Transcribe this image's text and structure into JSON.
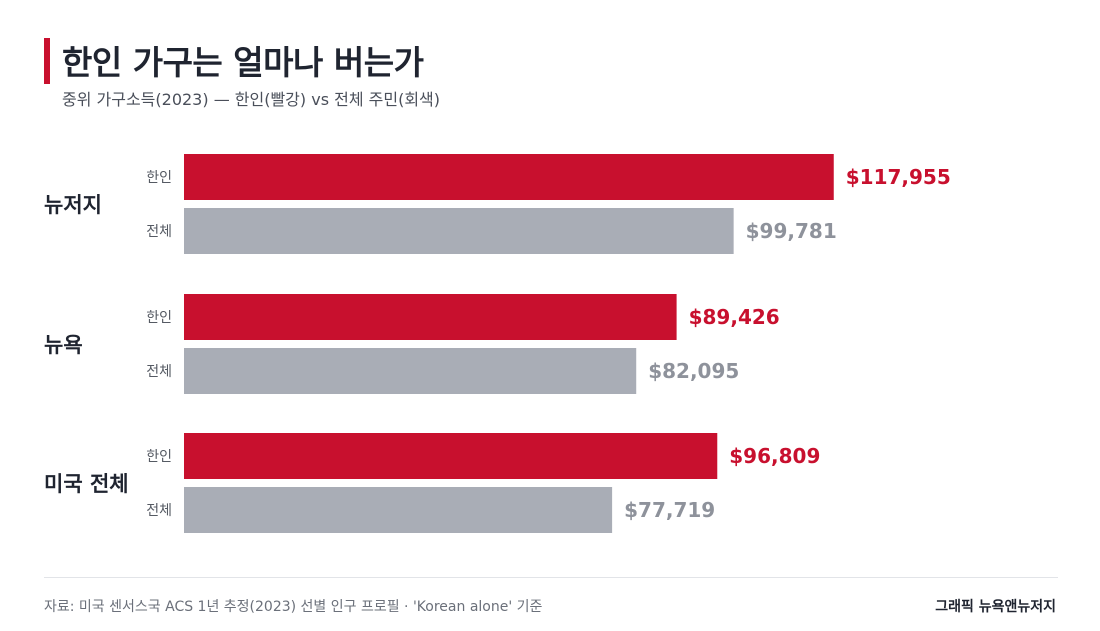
{
  "chart_data": {
    "type": "bar",
    "orientation": "horizontal",
    "title": "한인 가구는 얼마나 버는가",
    "subtitle": "중위 가구소득(2023) — 한인(빨강) vs 전체 주민(회색)",
    "categories": [
      "뉴저지",
      "뉴욕",
      "미국 전체"
    ],
    "series": [
      {
        "name": "한인",
        "color": "#c8102e",
        "values": [
          117955,
          89426,
          96809
        ],
        "labels": [
          "$117,955",
          "$89,426",
          "$96,809"
        ]
      },
      {
        "name": "전체",
        "color": "#a9adb6",
        "values": [
          99781,
          82095,
          77719
        ],
        "labels": [
          "$99,781",
          "$82,095",
          "$77,719"
        ]
      }
    ],
    "xlim": [
      0,
      118000
    ],
    "grid": false,
    "legend": "none"
  },
  "footer": {
    "source": "자료: 미국 센서스국 ACS 1년 추정(2023) 선별 인구 프로필 · 'Korean alone' 기준",
    "credit": "그래픽 뉴욕앤뉴저지"
  }
}
